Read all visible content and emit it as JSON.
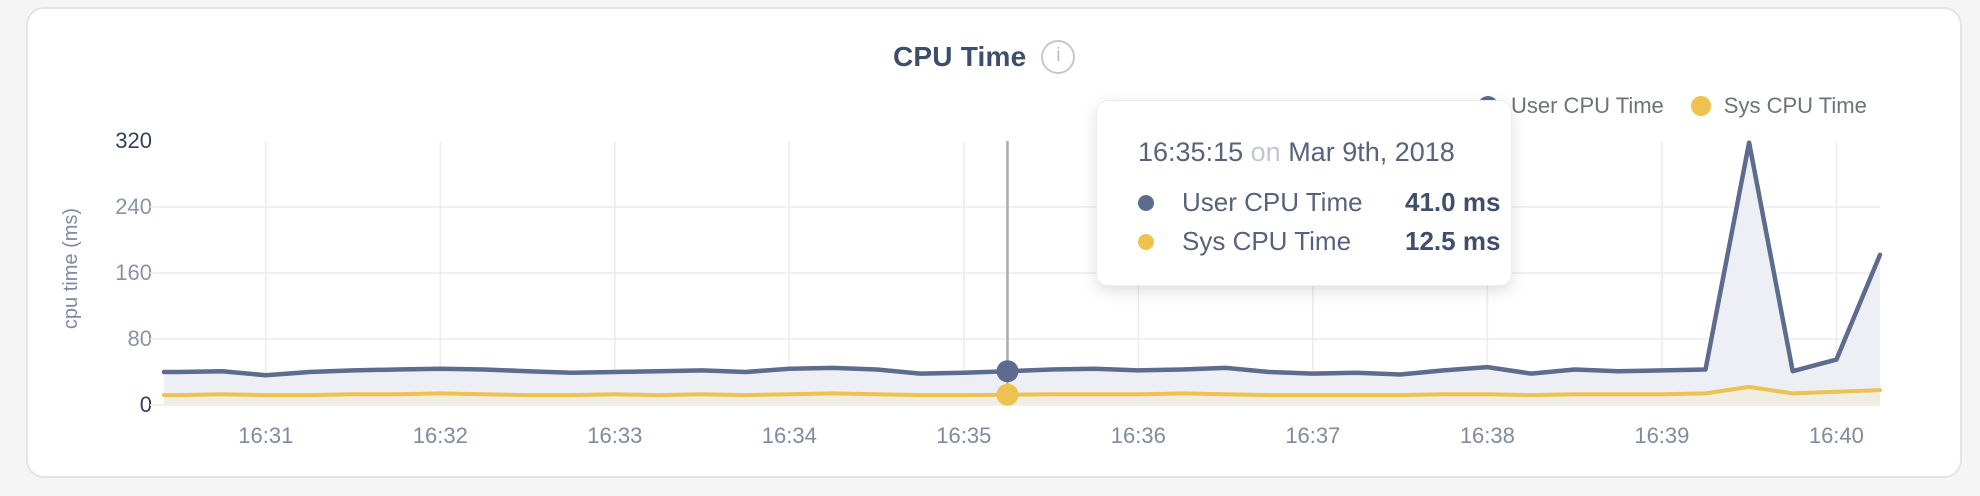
{
  "header": {
    "info_icon_glyph": "i"
  },
  "tooltip": {
    "time": "16:35:15",
    "connector": "on",
    "date": "Mar 9th, 2018",
    "rows": [
      {
        "label": "User CPU Time",
        "value": "41.0 ms",
        "color": "#5d6c8e"
      },
      {
        "label": "Sys CPU Time",
        "value": "12.5 ms",
        "color": "#edc24f"
      }
    ]
  },
  "chart_data": {
    "type": "area",
    "title": "CPU Time",
    "ylabel": "cpu time (ms)",
    "ylim": [
      0,
      320
    ],
    "yticks": [
      0,
      80,
      160,
      240,
      320
    ],
    "x_ticks": [
      "16:31",
      "16:32",
      "16:33",
      "16:34",
      "16:35",
      "16:36",
      "16:37",
      "16:38",
      "16:39",
      "16:40"
    ],
    "x_range": [
      "16:30:25",
      "16:40:15"
    ],
    "grid": true,
    "legend_position": "top-right",
    "sample_times": [
      "16:30:30",
      "16:30:45",
      "16:31:00",
      "16:31:15",
      "16:31:30",
      "16:31:45",
      "16:32:00",
      "16:32:15",
      "16:32:30",
      "16:32:45",
      "16:33:00",
      "16:33:15",
      "16:33:30",
      "16:33:45",
      "16:34:00",
      "16:34:15",
      "16:34:30",
      "16:34:45",
      "16:35:00",
      "16:35:15",
      "16:35:30",
      "16:35:45",
      "16:36:00",
      "16:36:15",
      "16:36:30",
      "16:36:45",
      "16:37:00",
      "16:37:15",
      "16:37:30",
      "16:37:45",
      "16:38:00",
      "16:38:15",
      "16:38:30",
      "16:38:45",
      "16:39:00",
      "16:39:15",
      "16:39:30",
      "16:39:45",
      "16:40:00",
      "16:40:15"
    ],
    "series": [
      {
        "name": "User CPU Time",
        "color": "#5d6c8e",
        "fill": "#edeff4",
        "values": [
          40,
          41,
          36,
          40,
          42,
          43,
          44,
          43,
          41,
          39,
          40,
          41,
          42,
          40,
          44,
          45,
          43,
          38,
          39,
          41,
          43,
          44,
          42,
          43,
          45,
          40,
          38,
          39,
          37,
          42,
          46,
          38,
          43,
          41,
          42,
          43,
          318,
          41,
          55,
          182
        ]
      },
      {
        "name": "Sys CPU Time",
        "color": "#edc24f",
        "fill": "#f0ede2",
        "values": [
          12,
          13,
          12,
          12,
          13,
          13,
          14,
          13,
          12,
          12,
          13,
          12,
          13,
          12,
          13,
          14,
          13,
          12,
          12,
          12.5,
          13,
          13,
          13,
          14,
          13,
          12,
          12,
          12,
          12,
          13,
          13,
          12,
          13,
          13,
          13,
          14,
          22,
          14,
          16,
          18
        ]
      }
    ],
    "hover": {
      "index": 19,
      "time": "16:35:15"
    }
  }
}
